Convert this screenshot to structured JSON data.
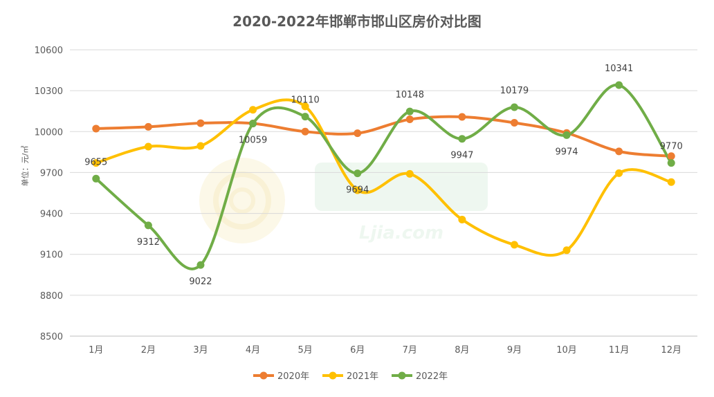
{
  "chart_data": {
    "type": "line",
    "title": "2020-2022年邯郸市邯山区房价对比图",
    "ylabel": "单位：元/㎡",
    "xlabel": "",
    "ylim": [
      8500,
      10600
    ],
    "yticks": [
      8500,
      8800,
      9100,
      9400,
      9700,
      10000,
      10300,
      10600
    ],
    "grid": true,
    "smooth": true,
    "legend_position": "bottom",
    "categories": [
      "1月",
      "2月",
      "3月",
      "4月",
      "5月",
      "6月",
      "7月",
      "8月",
      "9月",
      "10月",
      "11月",
      "12月"
    ],
    "series": [
      {
        "name": "2020年",
        "color": "#ed7d31",
        "values": [
          10022,
          10035,
          10062,
          10060,
          10000,
          9988,
          10090,
          10108,
          10065,
          9990,
          9855,
          9820
        ],
        "labels": false
      },
      {
        "name": "2021年",
        "color": "#ffc000",
        "values": [
          9770,
          9890,
          9895,
          10160,
          10185,
          9570,
          9690,
          9355,
          9170,
          9130,
          9695,
          9630
        ],
        "labels": false
      },
      {
        "name": "2022年",
        "color": "#70ad47",
        "values": [
          9655,
          9312,
          9022,
          10059,
          10110,
          9694,
          10148,
          9947,
          10179,
          9974,
          10341,
          9770
        ],
        "labels": true
      }
    ]
  },
  "watermark": "Ljia.com"
}
